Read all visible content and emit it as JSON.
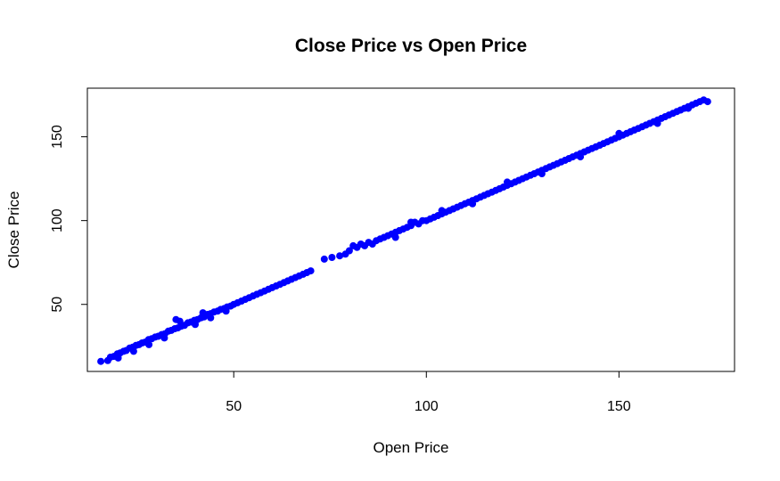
{
  "chart_data": {
    "type": "scatter",
    "title": "Close Price vs Open Price",
    "xlabel": "Open Price",
    "ylabel": "Close Price",
    "xlim": [
      12,
      180
    ],
    "ylim": [
      10,
      179
    ],
    "x_ticks": [
      50,
      100,
      150
    ],
    "y_ticks": [
      50,
      100,
      150
    ],
    "grid": false,
    "point_color": "#0000ff",
    "series": [
      {
        "x": [
          15.5,
          17.3,
          18.0,
          18.9,
          19.8,
          20.5,
          21.4,
          22.1,
          23.0,
          23.8,
          24.6,
          25.4,
          26.2,
          27.0,
          27.9,
          28.7,
          29.6,
          30.4,
          31.3,
          32.1,
          33.0,
          33.8,
          34.7,
          35.5,
          36.4,
          37.2,
          38.1,
          38.9,
          39.8,
          40.6,
          41.5,
          42.3,
          43.2,
          44.0,
          44.9,
          45.8,
          46.6,
          47.5,
          48.3,
          49.2,
          50.0,
          51.0,
          52.0,
          53.0,
          54.0,
          55.0,
          56.0,
          57.0,
          58.0,
          59.0,
          60.0,
          61.0,
          62.0,
          63.0,
          64.0,
          65.0,
          66.0,
          67.0,
          68.0,
          69.0,
          70.0,
          73.5,
          75.5,
          77.5,
          79.0,
          80.0,
          81.0,
          82.0,
          83.0,
          84.0,
          85.0,
          86.0,
          87.0,
          88.0,
          89.0,
          90.0,
          91.0,
          92.0,
          93.0,
          94.0,
          95.0,
          96.0,
          97.0,
          98.0,
          99.0,
          100.0,
          101.0,
          102.0,
          103.0,
          104.0,
          105.0,
          106.0,
          107.0,
          108.0,
          109.0,
          110.0,
          111.0,
          112.0,
          113.0,
          114.0,
          115.0,
          116.0,
          117.0,
          118.0,
          119.0,
          120.0,
          121.0,
          122.0,
          123.0,
          124.0,
          125.0,
          126.0,
          127.0,
          128.0,
          129.0,
          130.0,
          131.0,
          132.0,
          133.0,
          134.0,
          135.0,
          136.0,
          137.0,
          138.0,
          139.0,
          140.0,
          141.0,
          142.0,
          143.0,
          144.0,
          145.0,
          146.0,
          147.0,
          148.0,
          149.0,
          150.0,
          151.0,
          152.0,
          153.0,
          154.0,
          155.0,
          156.0,
          157.0,
          158.0,
          159.0,
          160.0,
          161.0,
          162.0,
          163.0,
          164.0,
          165.0,
          166.0,
          167.0,
          168.0,
          169.0,
          170.0,
          171.0,
          172.0,
          173.0,
          20.0,
          24.0,
          28.0,
          32.0,
          36.0,
          40.0,
          44.0,
          48.0,
          35.0,
          42.0,
          92.0,
          96.0,
          104.0,
          112.0,
          121.0,
          130.0,
          140.0,
          150.0,
          160.0,
          168.0
        ],
        "y": [
          16.0,
          16.5,
          18.5,
          19.0,
          20.5,
          21.0,
          22.0,
          22.5,
          24.0,
          24.5,
          25.5,
          26.0,
          27.0,
          27.5,
          29.0,
          29.5,
          30.5,
          31.0,
          32.0,
          32.5,
          34.0,
          34.5,
          35.5,
          36.0,
          37.0,
          37.5,
          39.0,
          39.5,
          40.5,
          41.0,
          42.0,
          42.5,
          44.0,
          44.5,
          45.5,
          46.0,
          47.0,
          47.5,
          48.5,
          49.0,
          50.0,
          51.0,
          52.0,
          53.0,
          54.0,
          55.0,
          56.0,
          57.0,
          58.0,
          59.0,
          60.0,
          61.0,
          62.0,
          63.0,
          64.0,
          65.0,
          66.0,
          67.0,
          68.0,
          69.0,
          70.0,
          77.0,
          78.0,
          79.0,
          80.0,
          82.0,
          85.0,
          84.0,
          86.0,
          85.0,
          87.0,
          86.0,
          88.0,
          89.0,
          90.0,
          91.0,
          92.0,
          93.0,
          94.0,
          95.0,
          96.0,
          97.0,
          99.0,
          98.0,
          100.0,
          100.0,
          101.0,
          102.0,
          103.0,
          104.0,
          105.0,
          106.0,
          107.0,
          108.0,
          109.0,
          110.0,
          111.0,
          112.0,
          113.0,
          114.0,
          115.0,
          116.0,
          117.0,
          118.0,
          119.0,
          120.0,
          121.0,
          122.0,
          123.0,
          124.0,
          125.0,
          126.0,
          127.0,
          128.0,
          129.0,
          130.0,
          131.0,
          132.0,
          133.0,
          134.0,
          135.0,
          136.0,
          137.0,
          138.0,
          139.0,
          140.0,
          141.0,
          142.0,
          143.0,
          144.0,
          145.0,
          146.0,
          147.0,
          148.0,
          149.0,
          150.0,
          151.0,
          152.0,
          153.0,
          154.0,
          155.0,
          156.0,
          157.0,
          158.0,
          159.0,
          160.0,
          161.0,
          162.0,
          163.0,
          164.0,
          165.0,
          166.0,
          167.0,
          168.0,
          169.0,
          170.0,
          171.0,
          172.0,
          171.0,
          18.0,
          22.0,
          26.0,
          30.0,
          40.0,
          38.0,
          42.0,
          46.0,
          41.0,
          45.0,
          90.0,
          99.0,
          106.0,
          110.0,
          123.0,
          128.0,
          138.0,
          152.0,
          158.0,
          167.0
        ]
      }
    ]
  }
}
